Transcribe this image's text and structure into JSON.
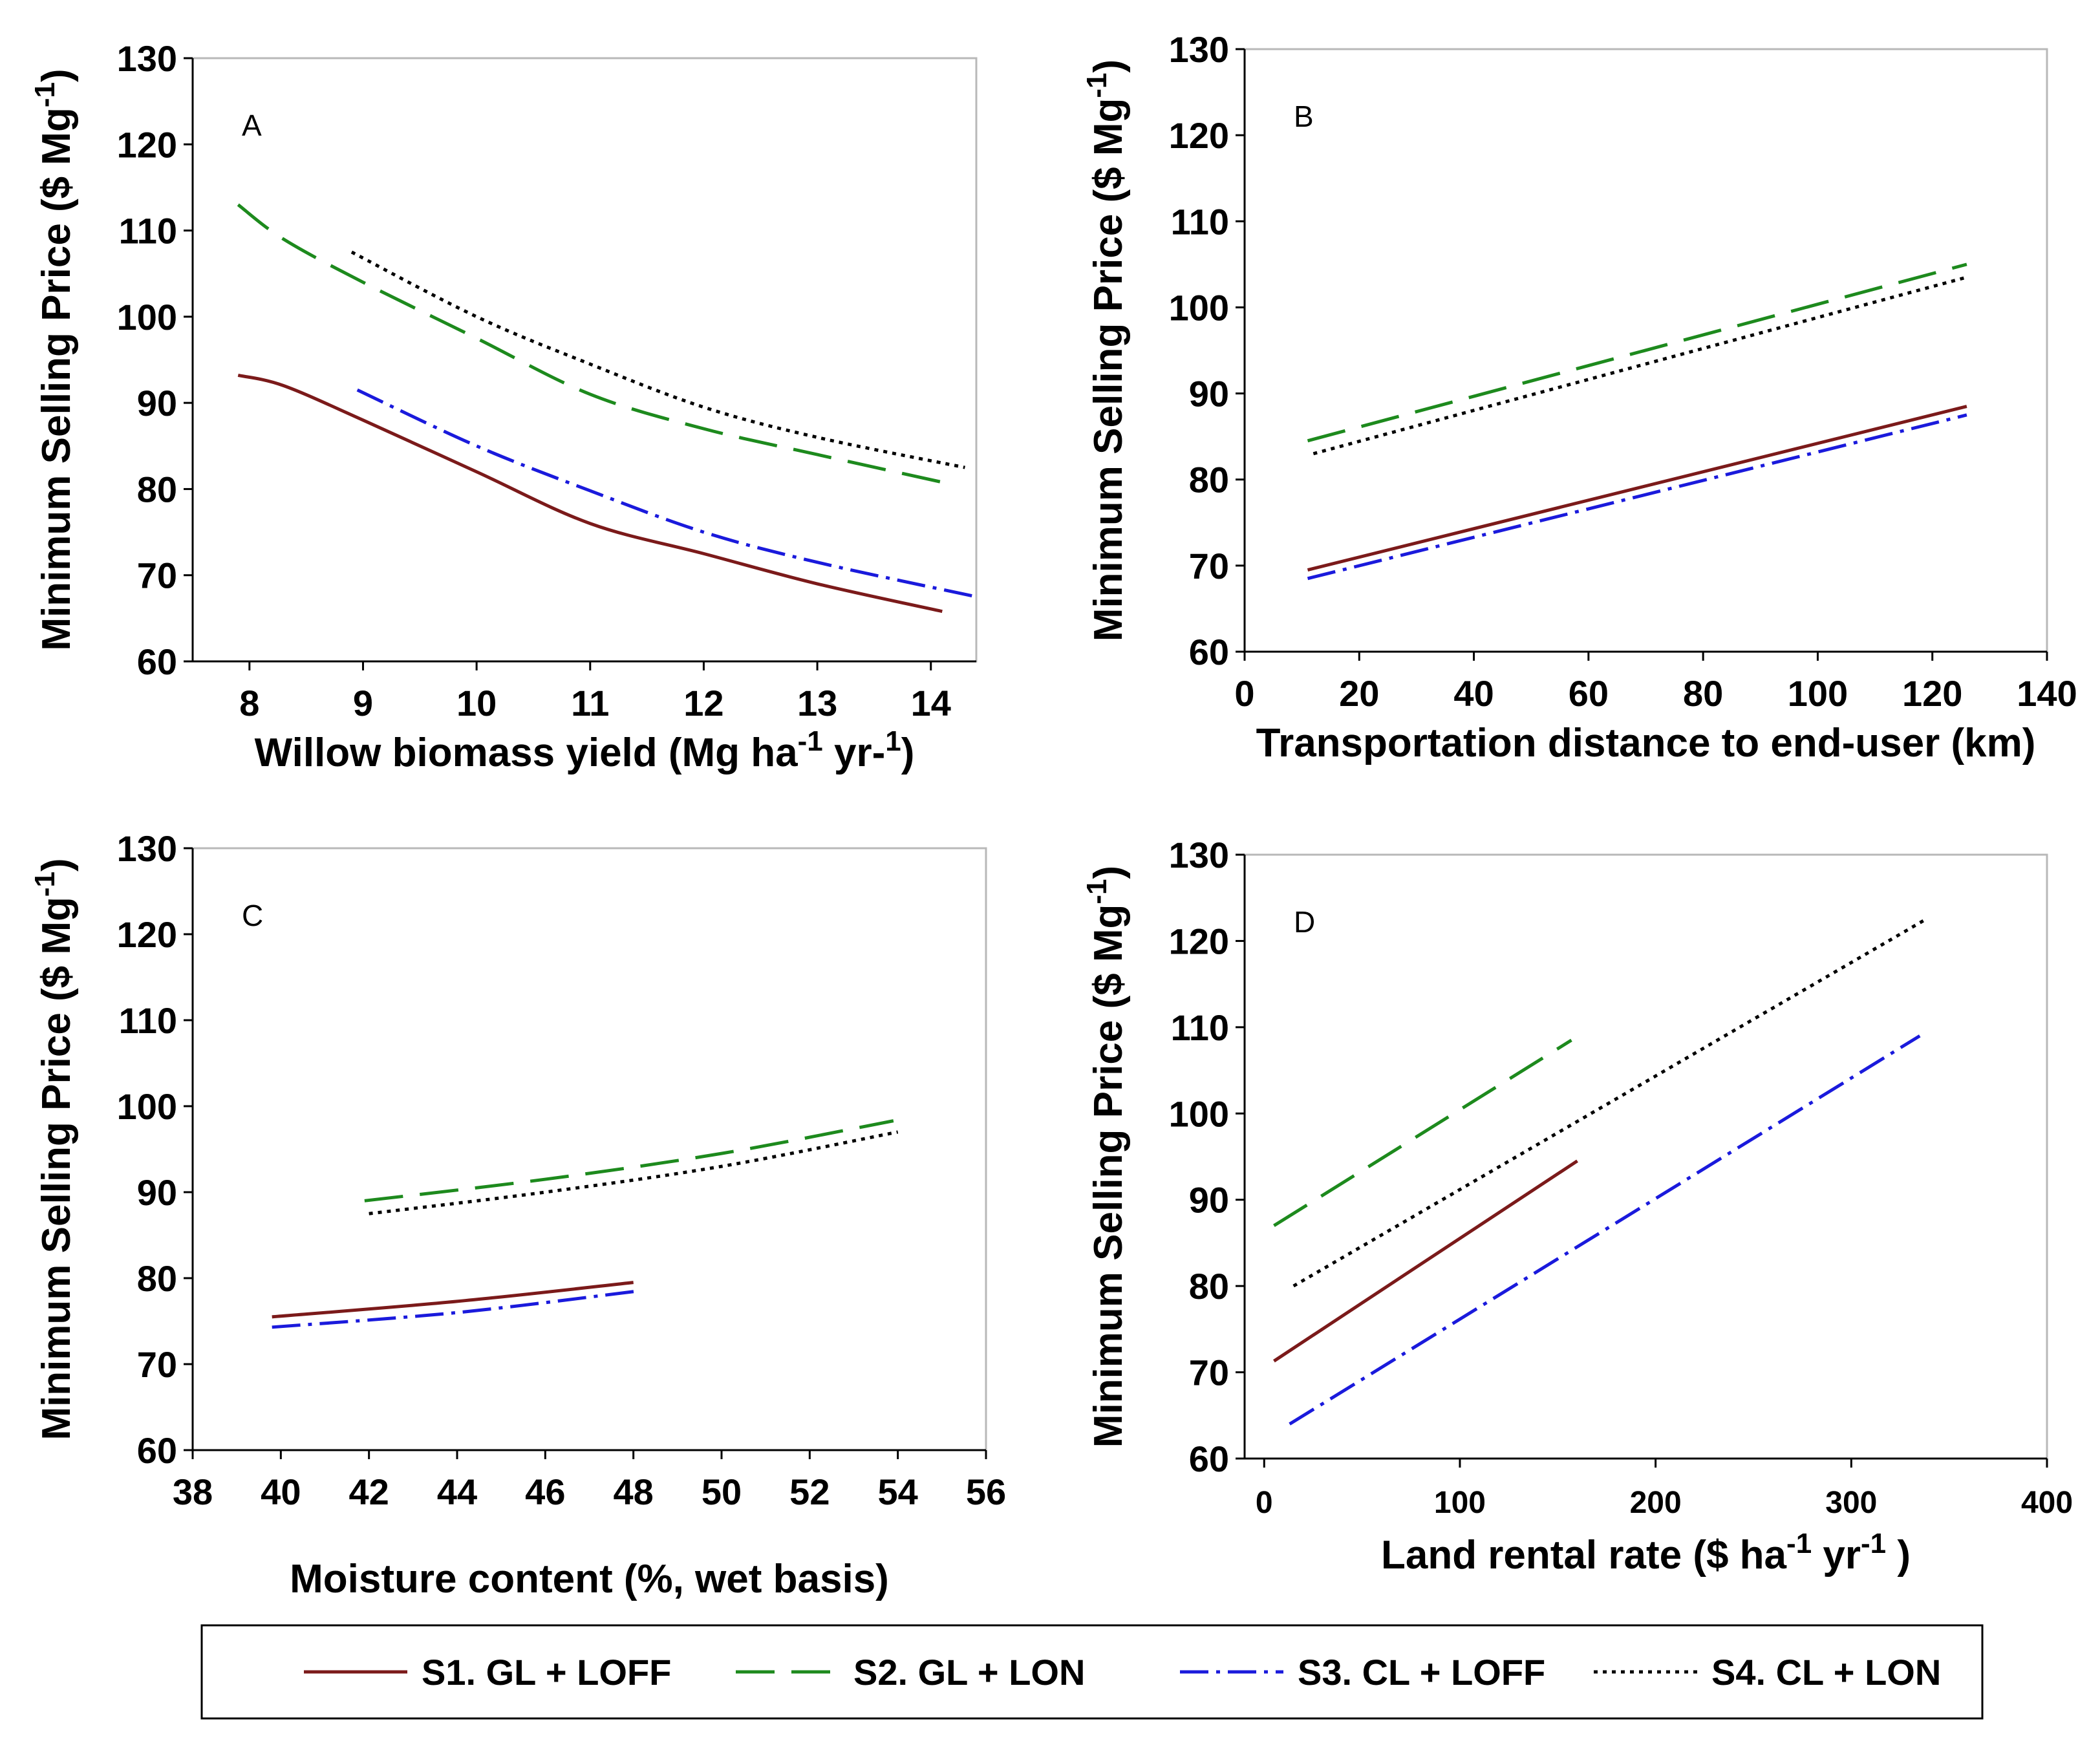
{
  "legend": [
    {
      "label": "S1. GL + LOFF",
      "color": "#7b1a1a",
      "dash": "none"
    },
    {
      "label": "S2. GL + LON",
      "color": "#1d8a1d",
      "dash": "60 26"
    },
    {
      "label": "S3. CL + LOFF",
      "color": "#1a1adc",
      "dash": "44 12 6 12"
    },
    {
      "label": "S4. CL + LON",
      "color": "#000000",
      "dash": "6 8"
    }
  ],
  "chart_data": [
    {
      "type": "line",
      "panel": "A",
      "xlabel": {
        "main": "Willow biomass yield (Mg ha",
        "sup1": "-1",
        "mid": " yr-",
        "sup2": "1",
        "end": ")"
      },
      "ylabel": {
        "main": "Minimum Selling Price ($ Mg",
        "sup": "-1",
        "end": ")"
      },
      "xlim": [
        7.5,
        14.4
      ],
      "ylim": [
        60,
        130
      ],
      "xticks": [
        8,
        9,
        10,
        11,
        12,
        13,
        14
      ],
      "yticks": [
        60,
        70,
        80,
        90,
        100,
        110,
        120,
        130
      ],
      "series": [
        {
          "name": "S1. GL + LOFF",
          "x": [
            7.9,
            8.3,
            9,
            10,
            11,
            12,
            13,
            14.1
          ],
          "y": [
            93.2,
            92,
            88,
            82,
            76,
            72.5,
            69,
            65.8
          ]
        },
        {
          "name": "S2. GL + LON",
          "x": [
            7.9,
            8.3,
            9,
            10,
            11,
            12,
            13,
            14.2
          ],
          "y": [
            113,
            109,
            104,
            97.5,
            91,
            87,
            84,
            80.5
          ]
        },
        {
          "name": "S3. CL + LOFF",
          "x": [
            8.95,
            10,
            11,
            12,
            13,
            14.4
          ],
          "y": [
            91.5,
            85,
            79.8,
            75,
            71.5,
            67.5
          ]
        },
        {
          "name": "S4. CL + LON",
          "x": [
            8.9,
            10,
            11,
            12,
            13,
            14.3
          ],
          "y": [
            107.5,
            100,
            94.5,
            89.5,
            86,
            82.5
          ]
        }
      ]
    },
    {
      "type": "line",
      "panel": "B",
      "xlabel": {
        "main": "Transportation distance to end-user (km)"
      },
      "ylabel": {
        "main": "Minimum Selling Price ($ Mg",
        "sup": "-1",
        "end": ")"
      },
      "xlim": [
        0,
        140
      ],
      "ylim": [
        60,
        130
      ],
      "xticks": [
        0,
        20,
        40,
        60,
        80,
        100,
        120,
        140
      ],
      "yticks": [
        60,
        70,
        80,
        90,
        100,
        110,
        120,
        130
      ],
      "series": [
        {
          "name": "S1. GL + LOFF",
          "x": [
            11,
            126
          ],
          "y": [
            69.5,
            88.5
          ]
        },
        {
          "name": "S2. GL + LON",
          "x": [
            11,
            126
          ],
          "y": [
            84.5,
            105
          ]
        },
        {
          "name": "S3. CL + LOFF",
          "x": [
            11,
            126
          ],
          "y": [
            68.5,
            87.5
          ]
        },
        {
          "name": "S4. CL + LON",
          "x": [
            12,
            126
          ],
          "y": [
            83,
            103.5
          ]
        }
      ]
    },
    {
      "type": "line",
      "panel": "C",
      "xlabel": {
        "main": "Moisture content (%, wet basis)"
      },
      "ylabel": {
        "main": "Minimum Selling Price ($ Mg",
        "sup": "-1",
        "end": ")"
      },
      "xlim": [
        38,
        56
      ],
      "ylim": [
        60,
        130
      ],
      "xticks": [
        38,
        40,
        42,
        44,
        46,
        48,
        50,
        52,
        54,
        56
      ],
      "yticks": [
        60,
        70,
        80,
        90,
        100,
        110,
        120,
        130
      ],
      "series": [
        {
          "name": "S1. GL + LOFF",
          "x": [
            39.8,
            44,
            48
          ],
          "y": [
            75.5,
            77.3,
            79.5
          ]
        },
        {
          "name": "S2. GL + LON",
          "x": [
            41.9,
            46,
            50,
            53.9
          ],
          "y": [
            89,
            91.5,
            94.5,
            98.3
          ]
        },
        {
          "name": "S3. CL + LOFF",
          "x": [
            39.8,
            44,
            48.1
          ],
          "y": [
            74.3,
            76,
            78.5
          ]
        },
        {
          "name": "S4. CL + LON",
          "x": [
            42,
            46,
            50,
            54
          ],
          "y": [
            87.5,
            90,
            93,
            97
          ]
        }
      ]
    },
    {
      "type": "line",
      "panel": "D",
      "xlabel": {
        "main": "Land rental rate ($ ha",
        "sup1": "-1",
        "mid": " yr",
        "sup2": "-1",
        "end": " )"
      },
      "ylabel": {
        "main": "Minimum Selling Price ($ Mg",
        "sup": "-1",
        "end": ")"
      },
      "xlim": [
        -10,
        400
      ],
      "ylim": [
        60,
        130
      ],
      "xticks": [
        0,
        100,
        200,
        300,
        400
      ],
      "yticks": [
        60,
        70,
        80,
        90,
        100,
        110,
        120,
        130
      ],
      "series": [
        {
          "name": "S1. GL + LOFF",
          "x": [
            5,
            160
          ],
          "y": [
            71.3,
            94.5
          ]
        },
        {
          "name": "S2. GL + LON",
          "x": [
            5,
            157
          ],
          "y": [
            87,
            108.5
          ]
        },
        {
          "name": "S3. CL + LOFF",
          "x": [
            13,
            335
          ],
          "y": [
            64,
            109
          ]
        },
        {
          "name": "S4. CL + LON",
          "x": [
            15,
            338
          ],
          "y": [
            80,
            122.5
          ]
        }
      ]
    }
  ]
}
